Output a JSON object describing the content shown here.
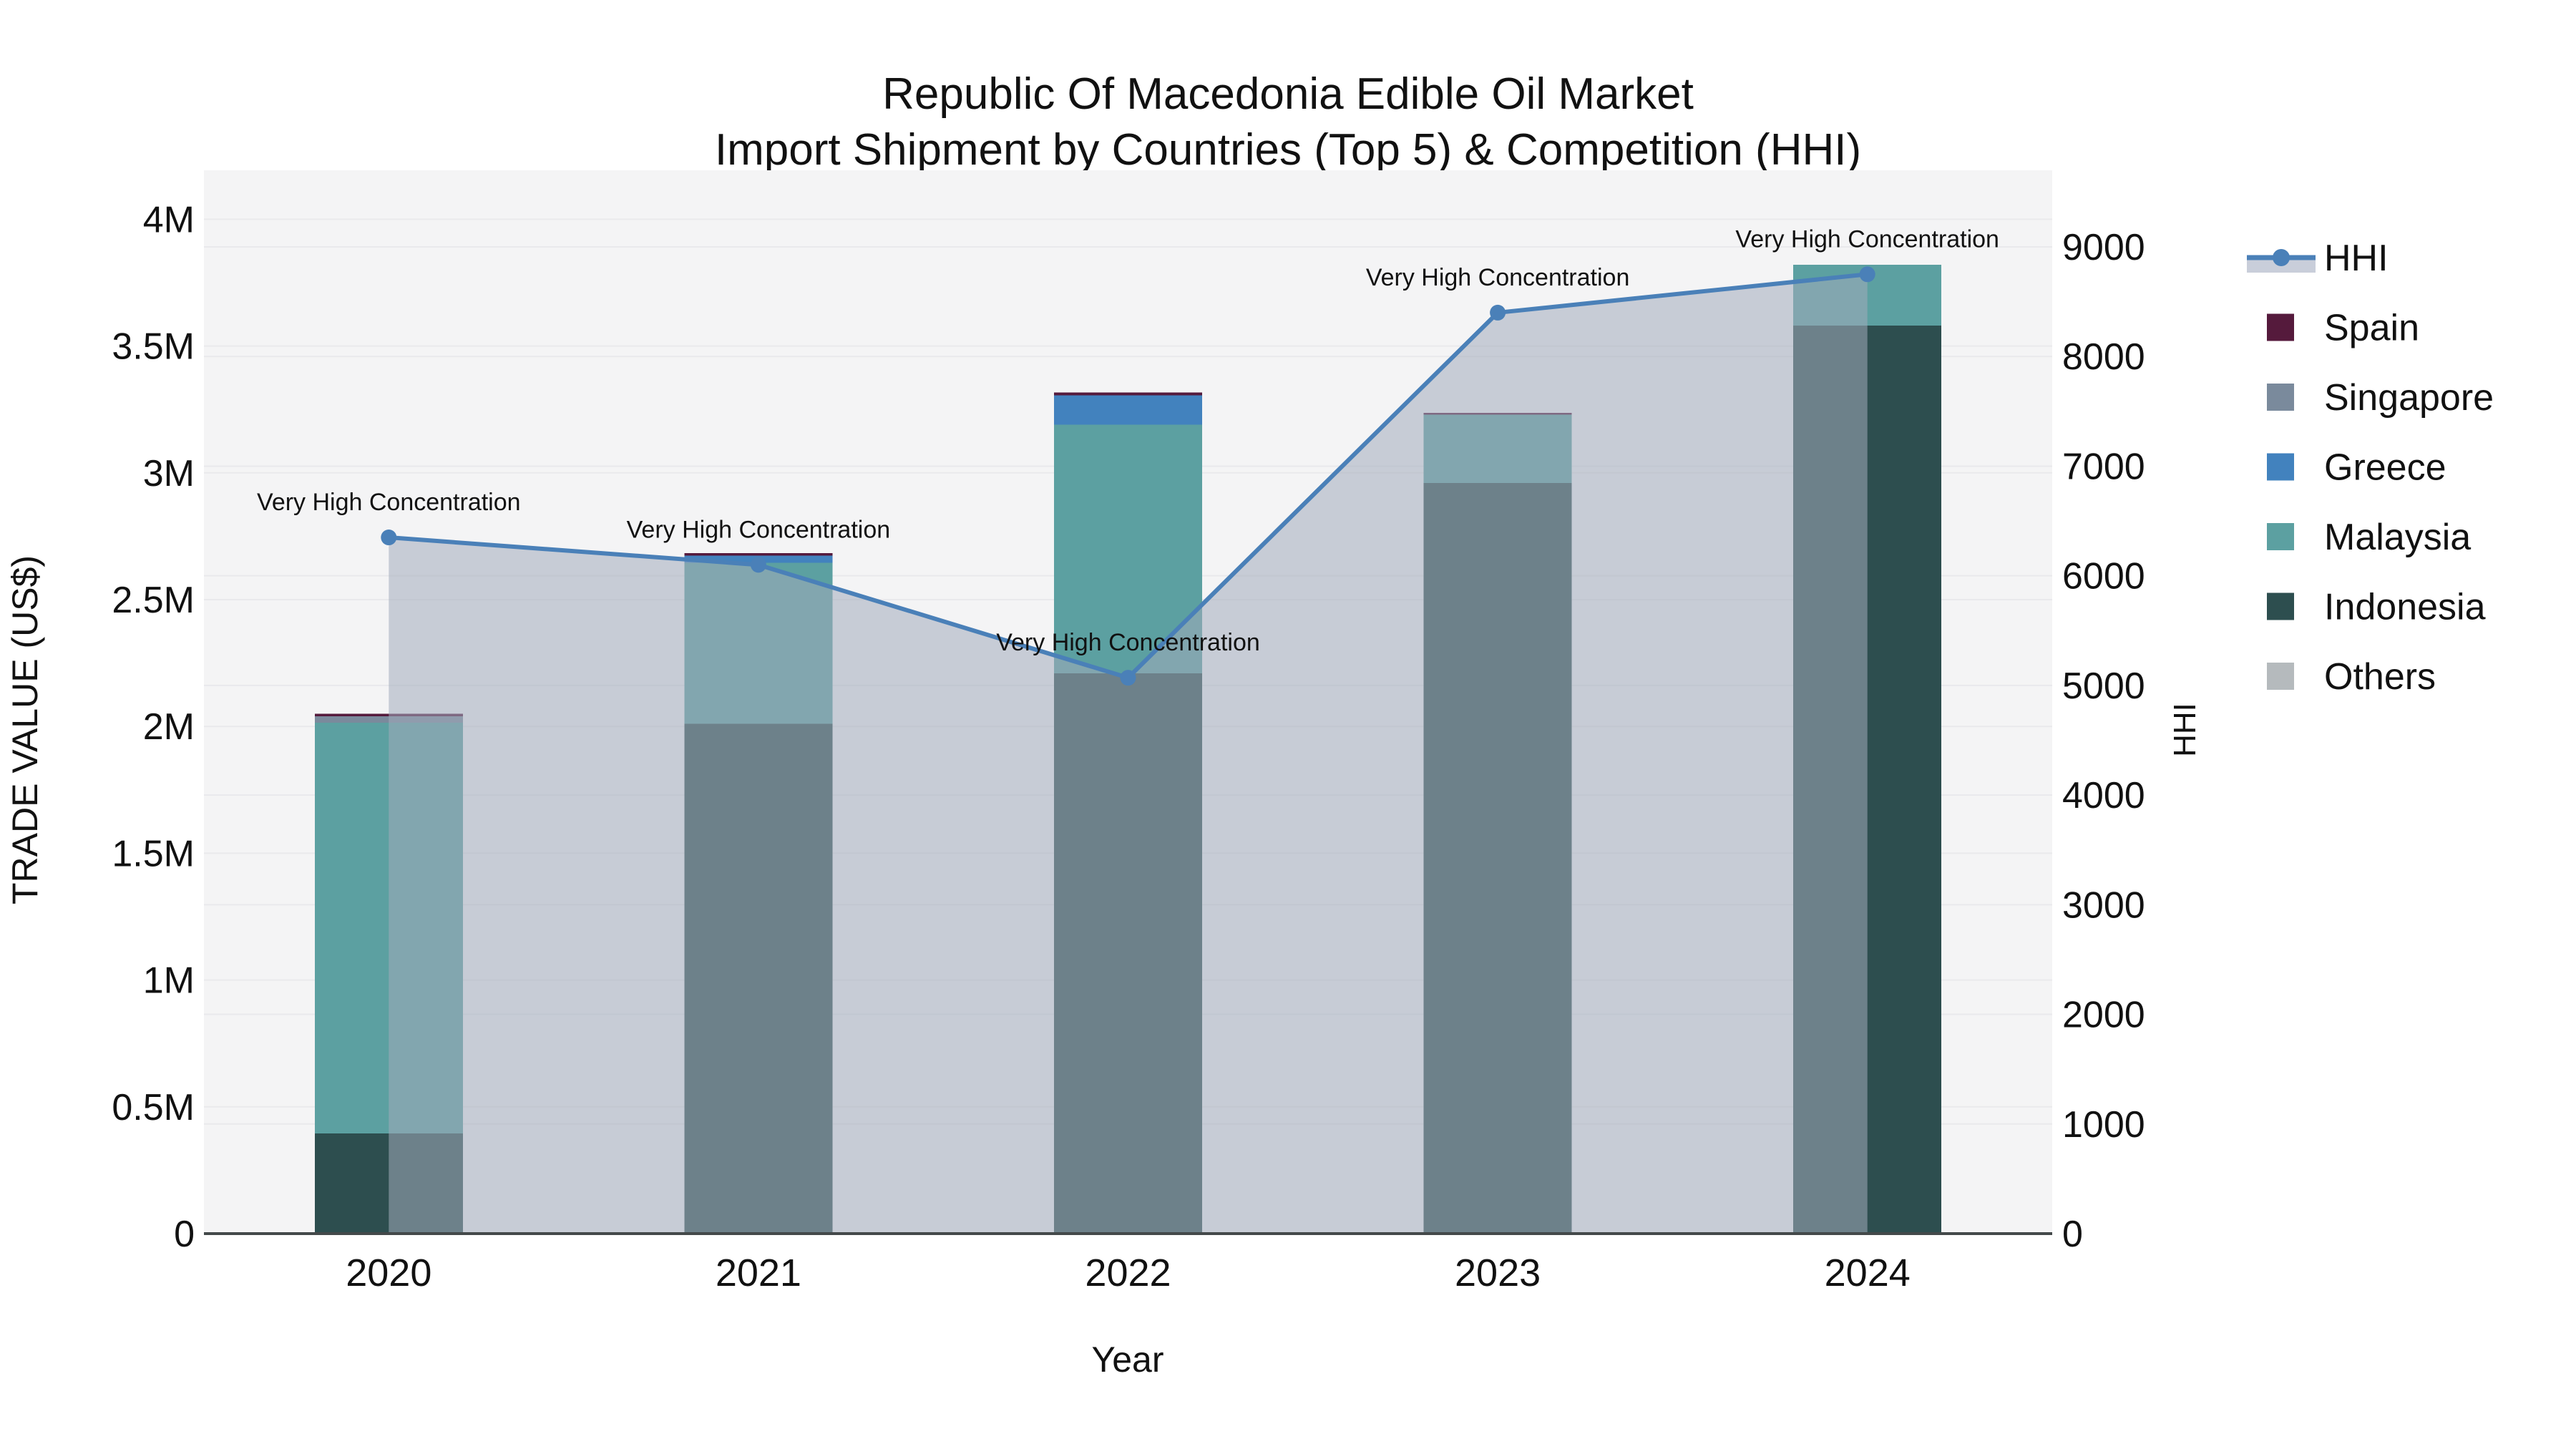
{
  "chart_data": {
    "type": "bar+line",
    "title_lines": [
      "Republic Of Macedonia Edible Oil Market",
      "Import Shipment by Countries (Top 5) & Competition (HHI)"
    ],
    "xlabel": "Year",
    "ylabel_left": "TRADE VALUE (US$)",
    "ylabel_right": "HHI",
    "categories": [
      "2020",
      "2021",
      "2022",
      "2023",
      "2024"
    ],
    "ylim_left": [
      0,
      4000000
    ],
    "ylim_right": [
      0,
      9000
    ],
    "left_ticks": [
      {
        "value": 0,
        "label": "0"
      },
      {
        "value": 500000,
        "label": "0.5M"
      },
      {
        "value": 1000000,
        "label": "1M"
      },
      {
        "value": 1500000,
        "label": "1.5M"
      },
      {
        "value": 2000000,
        "label": "2M"
      },
      {
        "value": 2500000,
        "label": "2.5M"
      },
      {
        "value": 3000000,
        "label": "3M"
      },
      {
        "value": 3500000,
        "label": "3.5M"
      },
      {
        "value": 4000000,
        "label": "4M"
      }
    ],
    "right_ticks": [
      {
        "value": 0,
        "label": "0"
      },
      {
        "value": 1000,
        "label": "1000"
      },
      {
        "value": 2000,
        "label": "2000"
      },
      {
        "value": 3000,
        "label": "3000"
      },
      {
        "value": 4000,
        "label": "4000"
      },
      {
        "value": 5000,
        "label": "5000"
      },
      {
        "value": 6000,
        "label": "6000"
      },
      {
        "value": 7000,
        "label": "7000"
      },
      {
        "value": 8000,
        "label": "8000"
      },
      {
        "value": 9000,
        "label": "9000"
      }
    ],
    "bar_series": [
      {
        "name": "Indonesia",
        "color": "#2D4E4F",
        "values": [
          395000,
          2010000,
          2210000,
          2960000,
          3580000
        ]
      },
      {
        "name": "Malaysia",
        "color": "#5CA0A1",
        "values": [
          1620000,
          635000,
          980000,
          270000,
          240000
        ]
      },
      {
        "name": "Greece",
        "color": "#4282BE",
        "values": [
          0,
          28000,
          115000,
          0,
          0
        ]
      },
      {
        "name": "Singapore",
        "color": "#7A8A9C",
        "values": [
          25000,
          0,
          0,
          0,
          0
        ]
      },
      {
        "name": "Spain",
        "color": "#551A3C",
        "values": [
          10000,
          10000,
          12000,
          7000,
          0
        ]
      }
    ],
    "line_series": {
      "name": "HHI",
      "color": "#4A80B8",
      "fill": "rgba(162,172,188,0.55)",
      "values": [
        6350,
        6100,
        5070,
        8400,
        8750
      ]
    },
    "annotation_text": "Very High Concentration",
    "legend": [
      {
        "name": "HHI",
        "type": "line",
        "color": "#4A80B8",
        "band": "#C9CEDA"
      },
      {
        "name": "Spain",
        "type": "patch",
        "color": "#551A3C"
      },
      {
        "name": "Singapore",
        "type": "patch",
        "color": "#7A8A9C"
      },
      {
        "name": "Greece",
        "type": "patch",
        "color": "#4282BE"
      },
      {
        "name": "Malaysia",
        "type": "patch",
        "color": "#5CA0A1"
      },
      {
        "name": "Indonesia",
        "type": "patch",
        "color": "#2D4E4F"
      },
      {
        "name": "Others",
        "type": "patch",
        "color": "#B5BABD"
      }
    ],
    "plot_bg": "#F4F4F5",
    "grid_color": "#E9E9EC",
    "axis_line_color": "#44494A",
    "legend_position": "right"
  }
}
